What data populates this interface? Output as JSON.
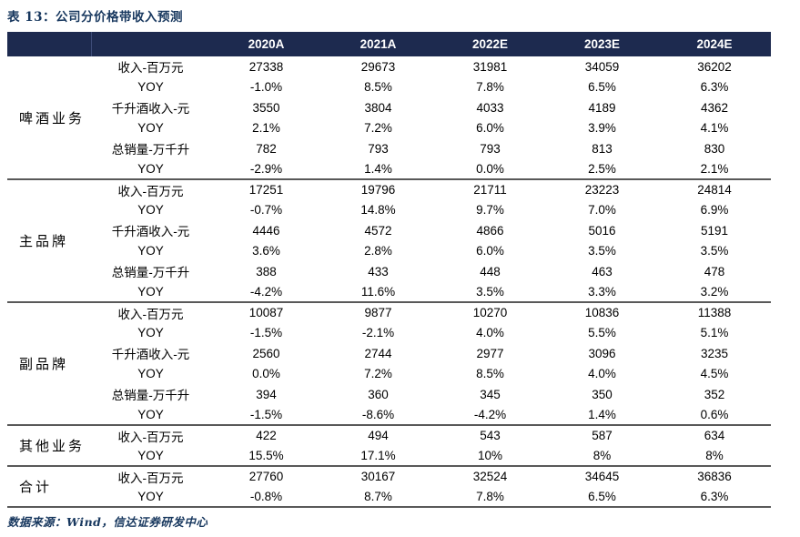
{
  "title": "表 13：公司分价格带收入预测",
  "header": {
    "years": [
      "2020A",
      "2021A",
      "2022E",
      "2023E",
      "2024E"
    ]
  },
  "chart_data": {
    "type": "table",
    "title": "公司分价格带收入预测",
    "columns": [
      "2020A",
      "2021A",
      "2022E",
      "2023E",
      "2024E"
    ],
    "groups": [
      {
        "name": "啤酒业务",
        "rows": [
          {
            "metric": "收入-百万元",
            "values": [
              "27338",
              "29673",
              "31981",
              "34059",
              "36202"
            ]
          },
          {
            "metric": "YOY",
            "values": [
              "-1.0%",
              "8.5%",
              "7.8%",
              "6.5%",
              "6.3%"
            ]
          },
          {
            "metric": "千升酒收入-元",
            "values": [
              "3550",
              "3804",
              "4033",
              "4189",
              "4362"
            ]
          },
          {
            "metric": "YOY",
            "values": [
              "2.1%",
              "7.2%",
              "6.0%",
              "3.9%",
              "4.1%"
            ]
          },
          {
            "metric": "总销量-万千升",
            "values": [
              "782",
              "793",
              "793",
              "813",
              "830"
            ]
          },
          {
            "metric": "YOY",
            "values": [
              "-2.9%",
              "1.4%",
              "0.0%",
              "2.5%",
              "2.1%"
            ]
          }
        ]
      },
      {
        "name": "主品牌",
        "rows": [
          {
            "metric": "收入-百万元",
            "values": [
              "17251",
              "19796",
              "21711",
              "23223",
              "24814"
            ]
          },
          {
            "metric": "YOY",
            "values": [
              "-0.7%",
              "14.8%",
              "9.7%",
              "7.0%",
              "6.9%"
            ]
          },
          {
            "metric": "千升酒收入-元",
            "values": [
              "4446",
              "4572",
              "4866",
              "5016",
              "5191"
            ]
          },
          {
            "metric": "YOY",
            "values": [
              "3.6%",
              "2.8%",
              "6.0%",
              "3.5%",
              "3.5%"
            ]
          },
          {
            "metric": "总销量-万千升",
            "values": [
              "388",
              "433",
              "448",
              "463",
              "478"
            ]
          },
          {
            "metric": "YOY",
            "values": [
              "-4.2%",
              "11.6%",
              "3.5%",
              "3.3%",
              "3.2%"
            ]
          }
        ]
      },
      {
        "name": "副品牌",
        "rows": [
          {
            "metric": "收入-百万元",
            "values": [
              "10087",
              "9877",
              "10270",
              "10836",
              "11388"
            ]
          },
          {
            "metric": "YOY",
            "values": [
              "-1.5%",
              "-2.1%",
              "4.0%",
              "5.5%",
              "5.1%"
            ]
          },
          {
            "metric": "千升酒收入-元",
            "values": [
              "2560",
              "2744",
              "2977",
              "3096",
              "3235"
            ]
          },
          {
            "metric": "YOY",
            "values": [
              "0.0%",
              "7.2%",
              "8.5%",
              "4.0%",
              "4.5%"
            ]
          },
          {
            "metric": "总销量-万千升",
            "values": [
              "394",
              "360",
              "345",
              "350",
              "352"
            ]
          },
          {
            "metric": "YOY",
            "values": [
              "-1.5%",
              "-8.6%",
              "-4.2%",
              "1.4%",
              "0.6%"
            ]
          }
        ]
      },
      {
        "name": "其他业务",
        "rows": [
          {
            "metric": "收入-百万元",
            "values": [
              "422",
              "494",
              "543",
              "587",
              "634"
            ]
          },
          {
            "metric": "YOY",
            "values": [
              "15.5%",
              "17.1%",
              "10%",
              "8%",
              "8%"
            ]
          }
        ]
      },
      {
        "name": "合计",
        "rows": [
          {
            "metric": "收入-百万元",
            "values": [
              "27760",
              "30167",
              "32524",
              "34645",
              "36836"
            ]
          },
          {
            "metric": "YOY",
            "values": [
              "-0.8%",
              "8.7%",
              "7.8%",
              "6.5%",
              "6.3%"
            ]
          }
        ]
      }
    ]
  },
  "footer": {
    "source": "数据来源：Wind，信达证券研发中心"
  },
  "colors": {
    "header_bg": "#1d2a4f",
    "title_text": "#17375e",
    "divider": "#595959",
    "body_text": "#000000"
  }
}
